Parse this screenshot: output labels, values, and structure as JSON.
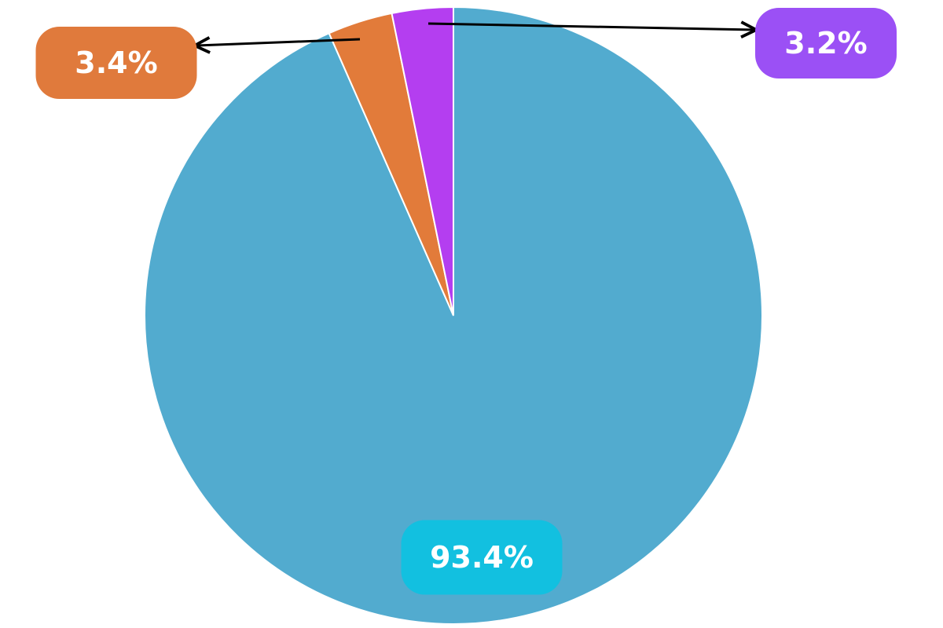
{
  "chart_data": {
    "type": "pie",
    "values": [
      93.4,
      3.4,
      3.2
    ],
    "value_labels": [
      "93.4%",
      "3.4%",
      "3.2%"
    ],
    "colors": [
      "#52abcf",
      "#e27b3a",
      "#b43ef0"
    ],
    "label_colors": [
      "#12c0e0",
      "#e07a3c",
      "#9b50f5"
    ]
  }
}
